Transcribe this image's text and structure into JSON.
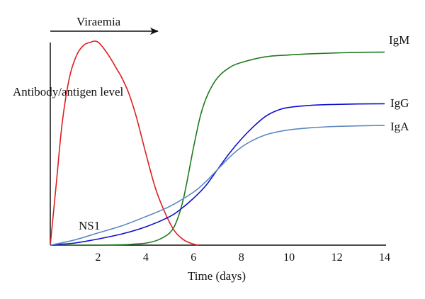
{
  "chart_data": {
    "type": "line",
    "xlabel": "Time (days)",
    "ylabel": "Antibody/antigen level",
    "xlim": [
      0,
      14
    ],
    "ylim": [
      0,
      100
    ],
    "x_ticks": [
      "2",
      "4",
      "6",
      "8",
      "10",
      "12",
      "14"
    ],
    "grid": false,
    "annotation": "Viraemia",
    "annotation_span": [
      0,
      4.5
    ],
    "series": [
      {
        "name": "NS1",
        "color": "#dd1f1f",
        "x": [
          0,
          0.25,
          0.5,
          0.8,
          1.1,
          1.4,
          1.7,
          1.85,
          2.0,
          2.2,
          2.5,
          2.8,
          3.0,
          3.3,
          3.6,
          4.0,
          4.4,
          4.8,
          5.2,
          5.6,
          6.0,
          6.2
        ],
        "y": [
          0,
          30,
          60,
          82,
          93,
          98,
          99.5,
          100,
          99.5,
          97,
          92,
          86,
          82,
          74,
          63,
          45,
          28,
          16,
          7,
          2.5,
          0.5,
          0
        ]
      },
      {
        "name": "IgM",
        "color": "#1f7a1f",
        "x": [
          0,
          1,
          2,
          3,
          3.5,
          4,
          4.5,
          5,
          5.3,
          5.6,
          6.0,
          6.3,
          6.6,
          7.0,
          7.5,
          8.0,
          9.0,
          10,
          11,
          12,
          13,
          14
        ],
        "y": [
          0,
          0,
          0,
          0.2,
          0.5,
          1,
          2.5,
          6,
          12,
          24,
          48,
          64,
          74,
          82,
          87,
          89.5,
          92.3,
          93.2,
          93.8,
          94.2,
          94.5,
          94.6
        ]
      },
      {
        "name": "IgG",
        "color": "#1010cc",
        "x": [
          0,
          0.5,
          1,
          2,
          3,
          4,
          5,
          5.5,
          6,
          6.5,
          7,
          7.5,
          8,
          8.5,
          9,
          9.5,
          10,
          11,
          12,
          13,
          14
        ],
        "y": [
          0,
          0.5,
          1,
          3,
          5.5,
          9,
          14,
          18,
          23,
          29,
          37,
          45,
          52,
          58,
          63,
          66,
          67.5,
          68.6,
          69,
          69.2,
          69.3
        ]
      },
      {
        "name": "IgA",
        "color": "#5b88c0",
        "x": [
          0,
          1,
          2,
          3,
          4,
          5,
          6,
          6.5,
          7,
          7.5,
          8,
          8.5,
          9,
          9.5,
          10,
          11,
          12,
          13,
          14
        ],
        "y": [
          0,
          2.5,
          6,
          9.5,
          14,
          19,
          26,
          31,
          37,
          43,
          48,
          51.5,
          54,
          55.5,
          56.5,
          57.6,
          58.2,
          58.5,
          58.7
        ]
      }
    ],
    "line_labels": [
      "IgM",
      "IgG",
      "IgA",
      "NS1"
    ]
  }
}
